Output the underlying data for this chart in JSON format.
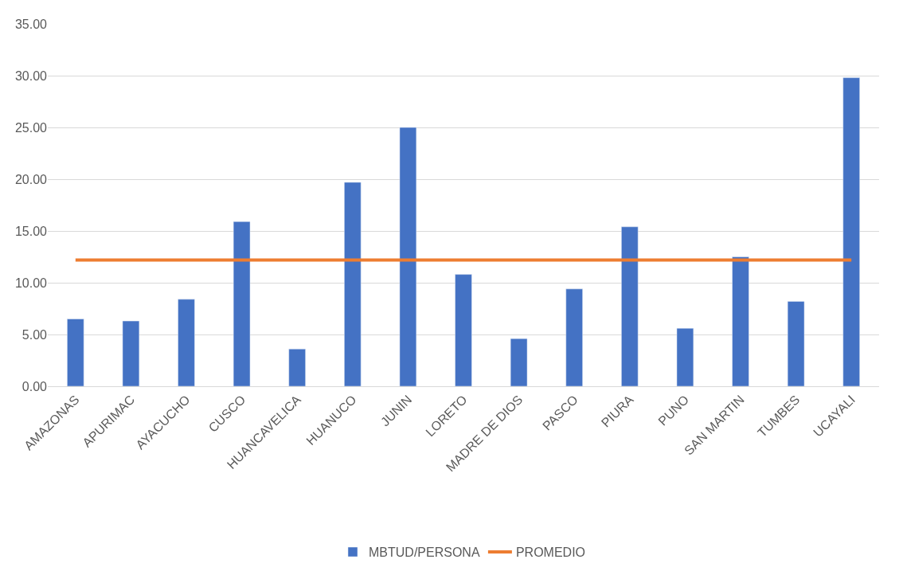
{
  "chart_data": {
    "type": "bar",
    "categories": [
      "AMAZONAS",
      "APURIMAC",
      "AYACUCHO",
      "CUSCO",
      "HUANCAVELICA",
      "HUANUCO",
      "JUNIN",
      "LORETO",
      "MADRE DE DIOS",
      "PASCO",
      "PIURA",
      "PUNO",
      "SAN MARTIN",
      "TUMBES",
      "UCAYALI"
    ],
    "series": [
      {
        "name": "MBTUD/PERSONA",
        "color": "#4472c4",
        "values": [
          6.5,
          6.3,
          8.4,
          15.9,
          3.6,
          19.7,
          25.0,
          10.8,
          4.6,
          9.4,
          15.4,
          5.6,
          12.5,
          8.2,
          29.8
        ]
      },
      {
        "name": "PROMEDIO",
        "type": "line",
        "color": "#ed7d31",
        "values": [
          12.2,
          12.2,
          12.2,
          12.2,
          12.2,
          12.2,
          12.2,
          12.2,
          12.2,
          12.2,
          12.2,
          12.2,
          12.2,
          12.2,
          12.2
        ]
      }
    ],
    "ylim": [
      0,
      35
    ],
    "yticks": [
      {
        "value": 0,
        "label": "0.00"
      },
      {
        "value": 5,
        "label": "5.00"
      },
      {
        "value": 10,
        "label": "10.00"
      },
      {
        "value": 15,
        "label": "15.00"
      },
      {
        "value": 20,
        "label": "20.00"
      },
      {
        "value": 25,
        "label": "25.00"
      },
      {
        "value": 30,
        "label": "30.00"
      },
      {
        "value": 35,
        "label": "35.00"
      }
    ],
    "grid": "y",
    "legend": "bottom",
    "marker": "none"
  }
}
